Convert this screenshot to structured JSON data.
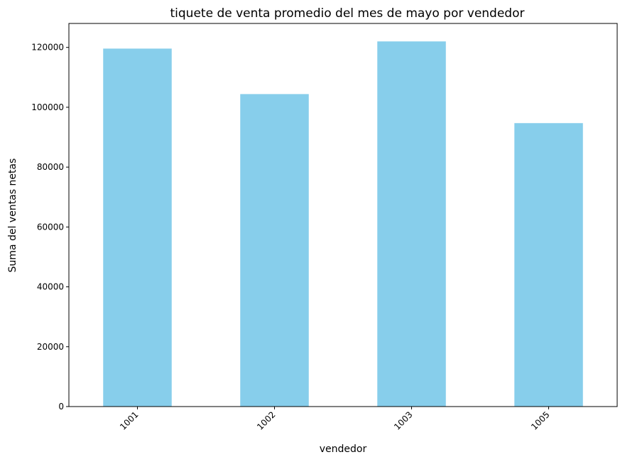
{
  "chart_data": {
    "type": "bar",
    "title": "tiquete de venta promedio del mes de mayo por vendedor",
    "xlabel": "vendedor",
    "ylabel": "Suma del ventas netas",
    "categories": [
      "1001",
      "1002",
      "1003",
      "1005"
    ],
    "values": [
      119600,
      104400,
      122000,
      94700
    ],
    "ylim": [
      0,
      128000
    ],
    "yticks": [
      0,
      20000,
      40000,
      60000,
      80000,
      100000,
      120000
    ],
    "ytick_labels": [
      "0",
      "20000",
      "40000",
      "60000",
      "80000",
      "100000",
      "120000"
    ],
    "bar_color": "#87ceeb",
    "grid": false,
    "legend": "none"
  }
}
